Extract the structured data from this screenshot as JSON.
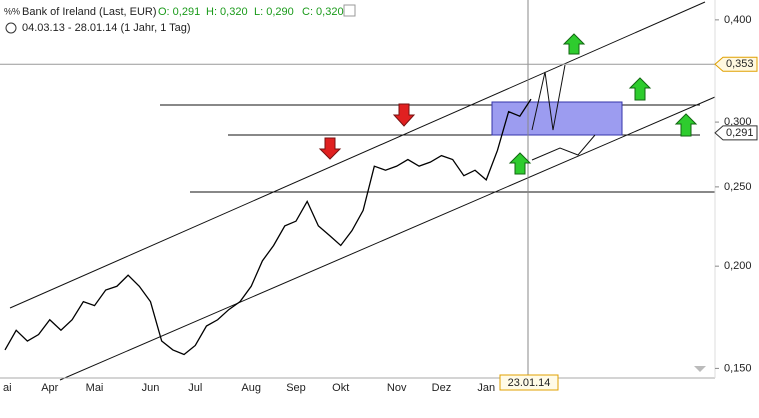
{
  "chart_data": {
    "type": "line",
    "title": "Bank of Ireland (Last, EUR)",
    "ohlc": [
      "O: 0,291",
      "H: 0,320",
      "L: 0,290",
      "C: 0,320"
    ],
    "subtitle": "04.03.13 - 28.01.14 (1 Jahr, 1 Tag)",
    "categories": [
      "ai",
      null,
      null,
      null,
      "Apr",
      null,
      null,
      null,
      "Mai",
      null,
      null,
      null,
      null,
      "Jun",
      null,
      null,
      null,
      "Jul",
      null,
      null,
      null,
      null,
      "Aug",
      null,
      null,
      null,
      "Sep",
      null,
      null,
      null,
      "Okt",
      null,
      null,
      null,
      null,
      "Nov",
      null,
      null,
      null,
      "Dez",
      null,
      null,
      null,
      "Jan",
      null,
      null,
      null,
      null
    ],
    "series": [
      {
        "name": "Bank of Ireland",
        "color": "#000000",
        "values": [
          0.158,
          0.167,
          0.162,
          0.165,
          0.172,
          0.167,
          0.172,
          0.181,
          0.179,
          0.187,
          0.189,
          0.195,
          0.189,
          0.181,
          0.162,
          0.158,
          0.156,
          0.16,
          0.169,
          0.172,
          0.177,
          0.181,
          0.189,
          0.203,
          0.212,
          0.224,
          0.227,
          0.24,
          0.224,
          0.218,
          0.212,
          0.221,
          0.234,
          0.265,
          0.262,
          0.265,
          0.27,
          0.265,
          0.268,
          0.273,
          0.27,
          0.258,
          0.262,
          0.255,
          0.277,
          0.309,
          0.305,
          0.32
        ]
      }
    ],
    "ylim": [
      0.146,
      0.423
    ],
    "log_scale": true,
    "yticks": [
      {
        "value": 0.15,
        "label": "0,150"
      },
      {
        "value": 0.2,
        "label": "0,200"
      },
      {
        "value": 0.25,
        "label": "0,250"
      },
      {
        "value": 0.3,
        "label": "0,300"
      },
      {
        "value": 0.4,
        "label": "0,400"
      }
    ],
    "price_markers": [
      {
        "value": 0.353,
        "label": "0,353"
      },
      {
        "value": 0.291,
        "label": "0,291"
      }
    ],
    "crosshair_label": "23.01.14"
  }
}
